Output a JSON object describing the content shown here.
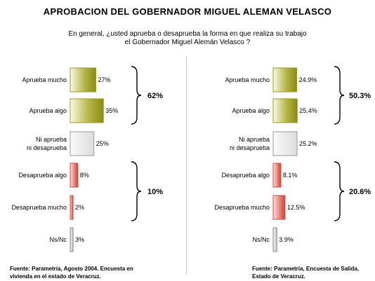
{
  "title": "APROBACION DEL GOBERNADOR MIGUEL ALEMAN VELASCO",
  "question": {
    "line1": "En general, ¿usted aprueba o desaprueba la forma en que realiza su trabajo",
    "line2": "el Gobernador Miguel Alemán Velasco ?"
  },
  "colors": {
    "approve": "#9a9a22",
    "neutral": "#e8e8e8",
    "disapprove": "#d84a40",
    "nsnc": "#d6d6d6"
  },
  "chart_data": [
    {
      "type": "bar",
      "categories": [
        "Aprueba mucho",
        "Aprueba algo",
        "Ni aprueba\nni desaprueba",
        "Desaprueba algo",
        "Desaprueba mucho",
        "Ns/Nc"
      ],
      "values": [
        27,
        35,
        25,
        8,
        2,
        3
      ],
      "value_labels": [
        "27%",
        "35%",
        "25%",
        "8%",
        "2%",
        "3%"
      ],
      "groups": [
        {
          "label": "62%",
          "from": 0,
          "to": 1
        },
        {
          "label": "10%",
          "from": 3,
          "to": 4
        }
      ],
      "source_lines": [
        "Fuente: Parametría, Agosto 2004. Encuesta en",
        "vivienda en el estado de Veracruz."
      ]
    },
    {
      "type": "bar",
      "categories": [
        "Aprueba mucho",
        "Aprueba algo",
        "Ni aprueba\nni desaprueba",
        "Desaprueba algo",
        "Desaprueba mucho",
        "Ns/Nc"
      ],
      "values": [
        24.9,
        25.4,
        25.2,
        8.1,
        12.5,
        3.9
      ],
      "value_labels": [
        "24.9%",
        "25.4%",
        "25.2%",
        "8.1%",
        "12.5%",
        "3.9%"
      ],
      "groups": [
        {
          "label": "50.3%",
          "from": 0,
          "to": 1
        },
        {
          "label": "20.6%",
          "from": 3,
          "to": 4
        }
      ],
      "source_lines": [
        "Fuente: Parametría, Encuesta de Salida,",
        "Estado de Veracruz."
      ]
    }
  ]
}
